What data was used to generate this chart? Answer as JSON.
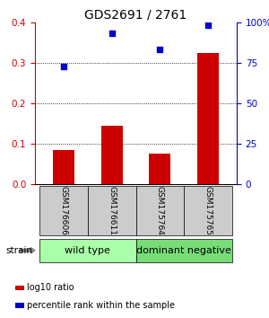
{
  "title": "GDS2691 / 2761",
  "samples": [
    "GSM176606",
    "GSM176611",
    "GSM175764",
    "GSM175765"
  ],
  "log10_ratio": [
    0.085,
    0.145,
    0.075,
    0.325
  ],
  "percentile_rank": [
    73,
    93,
    83,
    98
  ],
  "ylim_left": [
    0,
    0.4
  ],
  "ylim_right": [
    0,
    100
  ],
  "yticks_left": [
    0,
    0.1,
    0.2,
    0.3,
    0.4
  ],
  "yticks_right": [
    0,
    25,
    50,
    75,
    100
  ],
  "bar_color": "#cc0000",
  "scatter_color": "#0000cc",
  "groups": [
    {
      "label": "wild type",
      "indices": [
        0,
        1
      ],
      "color": "#aaffaa"
    },
    {
      "label": "dominant negative",
      "indices": [
        2,
        3
      ],
      "color": "#77dd77"
    }
  ],
  "legend_bar_label": "log10 ratio",
  "legend_scatter_label": "percentile rank within the sample",
  "strain_label": "strain",
  "sample_box_color": "#cccccc",
  "title_fontsize": 10,
  "tick_fontsize": 7.5,
  "group_label_fontsize": 8,
  "sample_fontsize": 6.5,
  "legend_fontsize": 7
}
